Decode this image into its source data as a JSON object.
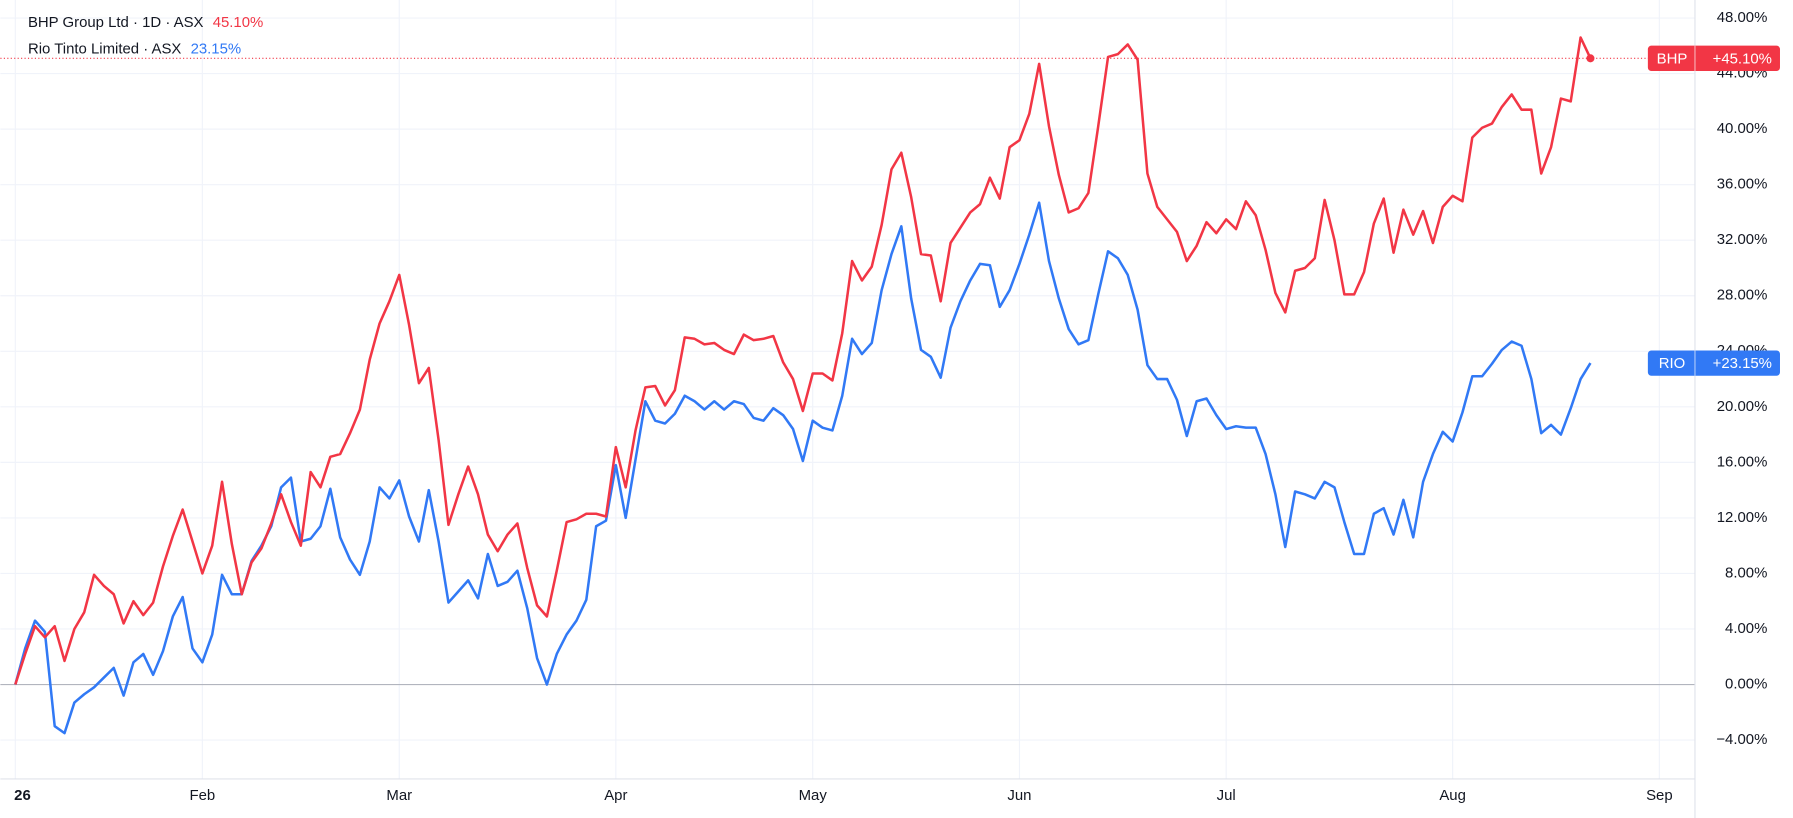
{
  "chart_data": {
    "type": "line",
    "categories": [
      "26",
      null,
      null,
      null,
      null,
      null,
      null,
      null,
      null,
      null,
      null,
      null,
      null,
      null,
      null,
      null,
      null,
      null,
      null,
      "Feb",
      null,
      null,
      null,
      null,
      null,
      null,
      null,
      null,
      null,
      null,
      null,
      null,
      null,
      null,
      null,
      null,
      null,
      null,
      null,
      "Mar",
      null,
      null,
      null,
      null,
      null,
      null,
      null,
      null,
      null,
      null,
      null,
      null,
      null,
      null,
      null,
      null,
      null,
      null,
      null,
      null,
      null,
      "Apr",
      null,
      null,
      null,
      null,
      null,
      null,
      null,
      null,
      null,
      null,
      null,
      null,
      null,
      null,
      null,
      null,
      null,
      null,
      null,
      "May",
      null,
      null,
      null,
      null,
      null,
      null,
      null,
      null,
      null,
      null,
      null,
      null,
      null,
      null,
      null,
      null,
      null,
      null,
      null,
      null,
      "Jun",
      null,
      null,
      null,
      null,
      null,
      null,
      null,
      null,
      null,
      null,
      null,
      null,
      null,
      null,
      null,
      null,
      null,
      null,
      null,
      null,
      "Jul",
      null,
      null,
      null,
      null,
      null,
      null,
      null,
      null,
      null,
      null,
      null,
      null,
      null,
      null,
      null,
      null,
      null,
      null,
      null,
      null,
      null,
      null,
      "Aug",
      null,
      null,
      null,
      null,
      null,
      null,
      null,
      null,
      null,
      null,
      null,
      null,
      null,
      null,
      null,
      null,
      null,
      null,
      null,
      null,
      "Sep"
    ],
    "series": [
      {
        "name": "BHP Group Ltd · 1D · ASX",
        "legend_value": "45.10%",
        "badge": "BHP",
        "badge_value": "+45.10%",
        "color": "#f23645",
        "values": [
          0,
          2.2,
          4.2,
          3.4,
          4.2,
          1.7,
          4.0,
          5.2,
          7.9,
          7.1,
          6.5,
          4.4,
          6.0,
          5.0,
          5.9,
          8.5,
          10.7,
          12.6,
          10.3,
          8.0,
          10.0,
          14.6,
          10.1,
          6.5,
          8.8,
          9.8,
          11.6,
          13.7,
          11.7,
          10.0,
          15.3,
          14.2,
          16.4,
          16.6,
          18.1,
          19.8,
          23.4,
          26.0,
          27.6,
          29.5,
          25.9,
          21.7,
          22.8,
          17.6,
          11.5,
          13.7,
          15.7,
          13.7,
          10.8,
          9.6,
          10.8,
          11.6,
          8.4,
          5.7,
          4.9,
          8.2,
          11.7,
          11.9,
          12.3,
          12.3,
          12.1,
          17.1,
          14.2,
          18.3,
          21.4,
          21.5,
          20.1,
          21.2,
          25.0,
          24.9,
          24.5,
          24.6,
          24.1,
          23.8,
          25.2,
          24.8,
          24.9,
          25.1,
          23.2,
          22.0,
          19.7,
          22.4,
          22.4,
          21.9,
          25.3,
          30.5,
          29.1,
          30.1,
          33.1,
          37.1,
          38.3,
          35.1,
          31.0,
          30.9,
          27.6,
          31.8,
          32.9,
          34.0,
          34.6,
          36.5,
          35.0,
          38.7,
          39.2,
          41.1,
          44.7,
          40.2,
          36.7,
          34.0,
          34.3,
          35.4,
          40.2,
          45.2,
          45.4,
          46.1,
          45.0,
          36.8,
          34.4,
          33.5,
          32.6,
          30.5,
          31.6,
          33.3,
          32.5,
          33.5,
          32.8,
          34.8,
          33.8,
          31.3,
          28.2,
          26.8,
          29.8,
          30.0,
          30.7,
          34.9,
          32.0,
          28.1,
          28.1,
          29.7,
          33.2,
          35.0,
          31.1,
          34.2,
          32.4,
          34.1,
          31.8,
          34.4,
          35.2,
          34.8,
          39.4,
          40.1,
          40.4,
          41.6,
          42.5,
          41.4,
          41.4,
          36.8,
          38.7,
          42.2,
          42.0,
          46.6,
          45.1,
          null,
          null,
          null,
          null,
          null,
          null,
          null
        ]
      },
      {
        "name": "Rio Tinto Limited · ASX",
        "legend_value": "23.15%",
        "badge": "RIO",
        "badge_value": "+23.15%",
        "color": "#3179f5",
        "values": [
          0,
          2.6,
          4.6,
          3.8,
          -3.0,
          -3.5,
          -1.3,
          -0.7,
          -0.2,
          0.5,
          1.2,
          -0.8,
          1.6,
          2.2,
          0.7,
          2.4,
          4.9,
          6.3,
          2.6,
          1.6,
          3.6,
          7.9,
          6.5,
          6.5,
          8.9,
          10.0,
          11.4,
          14.2,
          14.9,
          10.3,
          10.5,
          11.4,
          14.1,
          10.6,
          9.0,
          7.9,
          10.3,
          14.2,
          13.4,
          14.7,
          12.1,
          10.3,
          14.0,
          10.3,
          5.9,
          6.7,
          7.5,
          6.2,
          9.4,
          7.1,
          7.4,
          8.2,
          5.5,
          1.9,
          0,
          2.2,
          3.6,
          4.6,
          6.1,
          11.4,
          11.8,
          15.8,
          12.0,
          16.2,
          20.4,
          19.0,
          18.8,
          19.5,
          20.8,
          20.4,
          19.8,
          20.4,
          19.8,
          20.4,
          20.2,
          19.2,
          19.0,
          19.9,
          19.4,
          18.4,
          16.1,
          19.0,
          18.5,
          18.3,
          20.8,
          24.9,
          23.8,
          24.6,
          28.4,
          31.0,
          33.0,
          27.8,
          24.1,
          23.6,
          22.1,
          25.7,
          27.6,
          29.1,
          30.3,
          30.2,
          27.2,
          28.4,
          30.3,
          32.4,
          34.7,
          30.5,
          27.8,
          25.6,
          24.5,
          24.8,
          28.1,
          31.2,
          30.7,
          29.5,
          27.0,
          23.0,
          22.0,
          22.0,
          20.5,
          17.9,
          20.4,
          20.6,
          19.4,
          18.4,
          18.6,
          18.5,
          18.5,
          16.6,
          13.7,
          9.9,
          13.9,
          13.7,
          13.4,
          14.6,
          14.2,
          11.7,
          9.4,
          9.4,
          12.3,
          12.7,
          10.8,
          13.3,
          10.6,
          14.6,
          16.6,
          18.2,
          17.5,
          19.6,
          22.2,
          22.2,
          23.1,
          24.1,
          24.7,
          24.4,
          22.0,
          18.1,
          18.7,
          18.0,
          19.9,
          22.0,
          23.15,
          null,
          null,
          null,
          null,
          null,
          null,
          null
        ]
      }
    ],
    "ylim": [
      -6.8,
      49.3
    ],
    "yticks": [
      {
        "value": -4,
        "label": "−4.00%"
      },
      {
        "value": 0,
        "label": "0.00%"
      },
      {
        "value": 4,
        "label": "4.00%"
      },
      {
        "value": 8,
        "label": "8.00%"
      },
      {
        "value": 12,
        "label": "12.00%"
      },
      {
        "value": 16,
        "label": "16.00%"
      },
      {
        "value": 20,
        "label": "20.00%"
      },
      {
        "value": 24,
        "label": "24.00%"
      },
      {
        "value": 28,
        "label": "28.00%"
      },
      {
        "value": 32,
        "label": "32.00%"
      },
      {
        "value": 36,
        "label": "36.00%"
      },
      {
        "value": 40,
        "label": "40.00%"
      },
      {
        "value": 44,
        "label": "44.00%"
      },
      {
        "value": 48,
        "label": "48.00%"
      }
    ],
    "grid": true
  }
}
